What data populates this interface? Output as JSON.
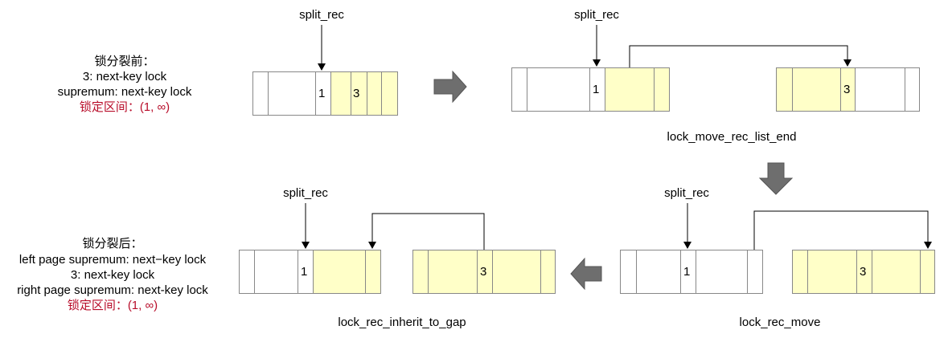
{
  "before": {
    "title": "锁分裂前：",
    "line1": "3: next-key lock",
    "line2": "supremum: next-key lock",
    "range": "锁定区间：(1, ∞)"
  },
  "after": {
    "title": "锁分裂后：",
    "line1": "left page supremum: next−key lock",
    "line2": "3: next-key lock",
    "line3": "right page supremum: next-key lock",
    "range": "锁定区间：(1, ∞)"
  },
  "labels": {
    "split_rec": "split_rec",
    "step1": "lock_move_rec_list_end",
    "step2": "lock_rec_move",
    "step3": "lock_rec_inherit_to_gap"
  },
  "records": {
    "one": "1",
    "three": "3"
  },
  "colors": {
    "highlight": "#ffffc8",
    "border": "#888888",
    "arrow": "#6e6e6e",
    "red_text": "#b80d2a"
  }
}
